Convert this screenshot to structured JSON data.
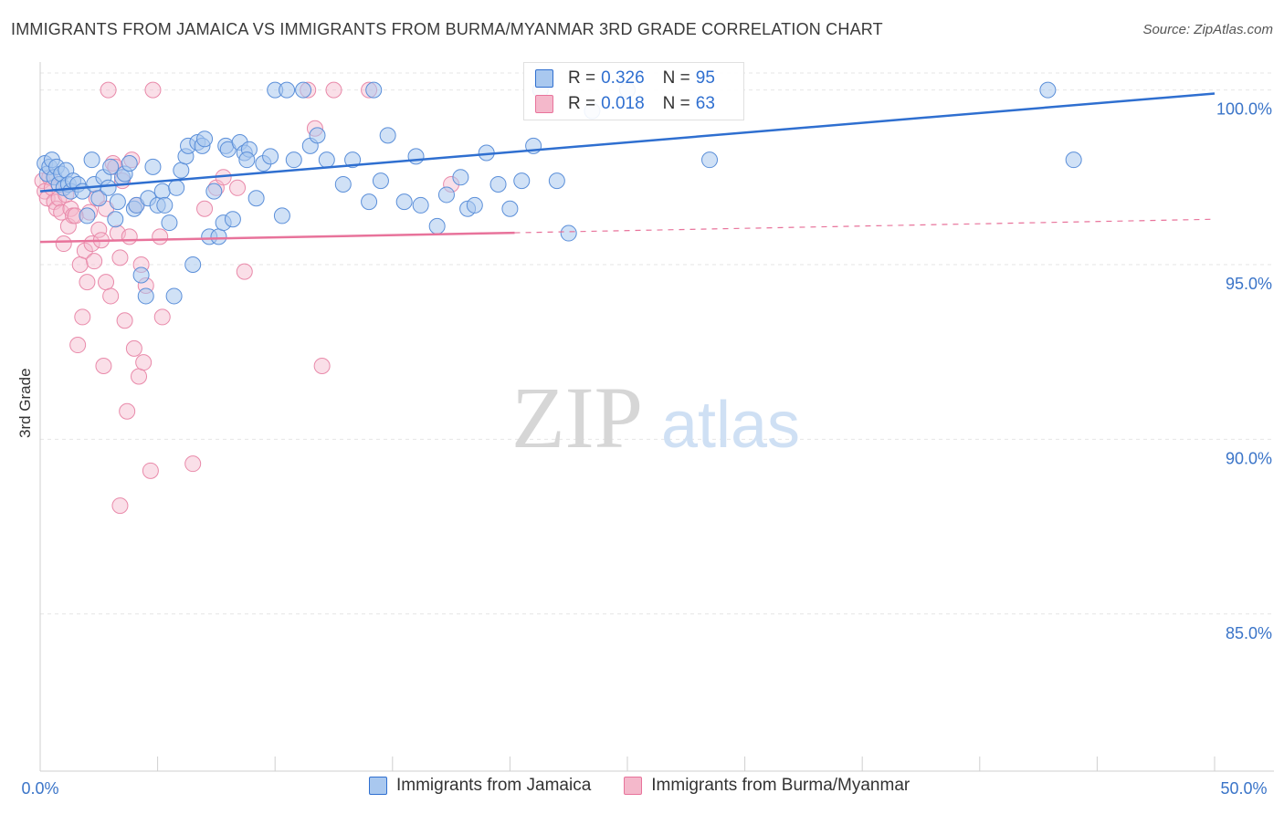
{
  "title": "IMMIGRANTS FROM JAMAICA VS IMMIGRANTS FROM BURMA/MYANMAR 3RD GRADE CORRELATION CHART",
  "source": "Source: ZipAtlas.com",
  "watermark": {
    "zip": "ZIP",
    "atlas": "atlas"
  },
  "stats": [
    {
      "r_label": "R =",
      "r": "0.326",
      "n_label": "N =",
      "n": "95"
    },
    {
      "r_label": "R =",
      "r": "0.018",
      "n_label": "N =",
      "n": "63"
    }
  ],
  "legend": [
    "Immigrants from Jamaica",
    "Immigrants from Burma/Myanmar"
  ],
  "colors": {
    "blue": "#2f6fd0",
    "blue_fill": "#a9c8ef",
    "pink": "#e8739b",
    "pink_fill": "#f4b8cb",
    "axis_text": "#3a74c8"
  },
  "chart_data": {
    "type": "scatter",
    "xlabel": "",
    "ylabel": "3rd Grade",
    "xlim": [
      0,
      50
    ],
    "ylim": [
      80.5,
      100.8
    ],
    "x_ticks": [
      "0.0%",
      "50.0%"
    ],
    "y_ticks": [
      {
        "value": 85,
        "label": "85.0%"
      },
      {
        "value": 90,
        "label": "90.0%"
      },
      {
        "value": 95,
        "label": "95.0%"
      },
      {
        "value": 100,
        "label": "100.0%"
      }
    ],
    "grid": true,
    "series": [
      {
        "name": "Immigrants from Jamaica",
        "trend": {
          "x": [
            0,
            50
          ],
          "y": [
            97.1,
            99.9
          ],
          "dashed_from": null
        },
        "points": [
          [
            0.2,
            97.9
          ],
          [
            0.3,
            97.6
          ],
          [
            0.4,
            97.8
          ],
          [
            0.5,
            98.0
          ],
          [
            0.6,
            97.5
          ],
          [
            0.7,
            97.8
          ],
          [
            0.8,
            97.3
          ],
          [
            0.9,
            97.6
          ],
          [
            1.0,
            97.2
          ],
          [
            1.1,
            97.7
          ],
          [
            1.2,
            97.3
          ],
          [
            1.3,
            97.1
          ],
          [
            1.4,
            97.4
          ],
          [
            1.6,
            97.3
          ],
          [
            1.8,
            97.1
          ],
          [
            2.0,
            96.4
          ],
          [
            2.2,
            98.0
          ],
          [
            2.3,
            97.3
          ],
          [
            2.5,
            96.9
          ],
          [
            2.7,
            97.5
          ],
          [
            2.9,
            97.2
          ],
          [
            3.0,
            97.8
          ],
          [
            3.2,
            96.3
          ],
          [
            3.3,
            96.8
          ],
          [
            3.5,
            97.5
          ],
          [
            3.6,
            97.6
          ],
          [
            3.8,
            97.9
          ],
          [
            4.0,
            96.6
          ],
          [
            4.1,
            96.7
          ],
          [
            4.3,
            94.7
          ],
          [
            4.5,
            94.1
          ],
          [
            4.6,
            96.9
          ],
          [
            4.8,
            97.8
          ],
          [
            5.0,
            96.7
          ],
          [
            5.2,
            97.1
          ],
          [
            5.3,
            96.7
          ],
          [
            5.5,
            96.2
          ],
          [
            5.7,
            94.1
          ],
          [
            5.8,
            97.2
          ],
          [
            6.0,
            97.7
          ],
          [
            6.2,
            98.1
          ],
          [
            6.3,
            98.4
          ],
          [
            6.5,
            95.0
          ],
          [
            6.7,
            98.5
          ],
          [
            6.9,
            98.4
          ],
          [
            7.0,
            98.6
          ],
          [
            7.2,
            95.8
          ],
          [
            7.4,
            97.1
          ],
          [
            7.6,
            95.8
          ],
          [
            7.8,
            96.2
          ],
          [
            7.9,
            98.4
          ],
          [
            8.0,
            98.3
          ],
          [
            8.2,
            96.3
          ],
          [
            8.5,
            98.5
          ],
          [
            8.7,
            98.2
          ],
          [
            8.9,
            98.3
          ],
          [
            9.2,
            96.9
          ],
          [
            9.5,
            97.9
          ],
          [
            9.8,
            98.1
          ],
          [
            10.0,
            100.0
          ],
          [
            10.3,
            96.4
          ],
          [
            10.5,
            100.0
          ],
          [
            10.8,
            98.0
          ],
          [
            11.2,
            100.0
          ],
          [
            11.5,
            98.4
          ],
          [
            11.8,
            98.7
          ],
          [
            12.2,
            98.0
          ],
          [
            12.9,
            97.3
          ],
          [
            13.3,
            98.0
          ],
          [
            14.0,
            96.8
          ],
          [
            14.2,
            100.0
          ],
          [
            14.5,
            97.4
          ],
          [
            14.8,
            98.7
          ],
          [
            15.5,
            96.8
          ],
          [
            16.0,
            98.1
          ],
          [
            16.2,
            96.7
          ],
          [
            16.9,
            96.1
          ],
          [
            17.3,
            97.0
          ],
          [
            17.9,
            97.5
          ],
          [
            18.2,
            96.6
          ],
          [
            18.5,
            96.7
          ],
          [
            19.0,
            98.2
          ],
          [
            19.5,
            97.3
          ],
          [
            20.0,
            96.6
          ],
          [
            20.5,
            97.4
          ],
          [
            21.0,
            98.4
          ],
          [
            21.3,
            100.0
          ],
          [
            22.0,
            97.4
          ],
          [
            22.5,
            95.9
          ],
          [
            23.5,
            99.4
          ],
          [
            25.0,
            100.0
          ],
          [
            28.5,
            98.0
          ],
          [
            42.9,
            100.0
          ],
          [
            44.0,
            98.0
          ],
          [
            8.8,
            98.0
          ]
        ]
      },
      {
        "name": "Immigrants from Burma/Myanmar",
        "trend": {
          "x": [
            0,
            50
          ],
          "y": [
            95.65,
            96.3
          ],
          "dashed_from": 20.2
        },
        "points": [
          [
            0.1,
            97.4
          ],
          [
            0.2,
            97.1
          ],
          [
            0.3,
            96.9
          ],
          [
            0.4,
            97.5
          ],
          [
            0.5,
            97.2
          ],
          [
            0.6,
            96.8
          ],
          [
            0.7,
            96.6
          ],
          [
            0.8,
            96.9
          ],
          [
            0.9,
            96.5
          ],
          [
            1.0,
            95.6
          ],
          [
            1.1,
            97.0
          ],
          [
            1.2,
            96.1
          ],
          [
            1.3,
            96.6
          ],
          [
            1.4,
            96.4
          ],
          [
            1.6,
            92.7
          ],
          [
            1.7,
            95.0
          ],
          [
            1.8,
            93.5
          ],
          [
            1.9,
            95.4
          ],
          [
            2.0,
            94.5
          ],
          [
            2.1,
            96.5
          ],
          [
            2.2,
            95.6
          ],
          [
            2.3,
            95.1
          ],
          [
            2.4,
            96.9
          ],
          [
            2.5,
            96.0
          ],
          [
            2.6,
            95.7
          ],
          [
            2.7,
            92.1
          ],
          [
            2.8,
            94.5
          ],
          [
            2.9,
            100.0
          ],
          [
            3.0,
            94.1
          ],
          [
            3.1,
            97.9
          ],
          [
            3.2,
            97.8
          ],
          [
            3.3,
            95.9
          ],
          [
            3.4,
            95.2
          ],
          [
            3.5,
            97.4
          ],
          [
            3.6,
            93.4
          ],
          [
            3.7,
            90.8
          ],
          [
            3.8,
            95.8
          ],
          [
            3.9,
            98.0
          ],
          [
            4.0,
            92.6
          ],
          [
            4.1,
            96.7
          ],
          [
            4.2,
            91.8
          ],
          [
            4.3,
            95.0
          ],
          [
            4.4,
            92.2
          ],
          [
            4.5,
            94.4
          ],
          [
            4.7,
            89.1
          ],
          [
            4.8,
            100.0
          ],
          [
            5.1,
            95.8
          ],
          [
            5.2,
            93.5
          ],
          [
            6.5,
            89.3
          ],
          [
            7.0,
            96.6
          ],
          [
            7.5,
            97.2
          ],
          [
            7.8,
            97.5
          ],
          [
            8.4,
            97.2
          ],
          [
            8.7,
            94.8
          ],
          [
            11.4,
            100.0
          ],
          [
            11.7,
            98.9
          ],
          [
            12.0,
            92.1
          ],
          [
            12.5,
            100.0
          ],
          [
            14.0,
            100.0
          ],
          [
            17.5,
            97.3
          ],
          [
            3.4,
            88.1
          ],
          [
            1.5,
            96.4
          ],
          [
            2.8,
            96.6
          ]
        ]
      }
    ]
  }
}
